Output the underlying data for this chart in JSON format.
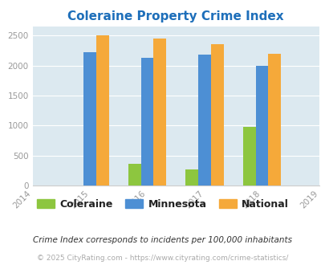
{
  "title": "Coleraine Property Crime Index",
  "years": [
    2015,
    2016,
    2017,
    2018
  ],
  "coleraine": [
    0,
    360,
    265,
    980
  ],
  "minnesota": [
    2220,
    2130,
    2180,
    2000
  ],
  "national": [
    2500,
    2450,
    2350,
    2200
  ],
  "xlim": [
    2014,
    2019
  ],
  "ylim": [
    0,
    2650
  ],
  "yticks": [
    0,
    500,
    1000,
    1500,
    2000,
    2500
  ],
  "bar_width": 0.22,
  "color_coleraine": "#8dc63f",
  "color_minnesota": "#4d8fd4",
  "color_national": "#f5a93a",
  "bg_color": "#dce9f0",
  "title_color": "#1e6fba",
  "grid_color": "#ffffff",
  "footnote1": "Crime Index corresponds to incidents per 100,000 inhabitants",
  "footnote2": "© 2025 CityRating.com - https://www.cityrating.com/crime-statistics/",
  "legend_labels": [
    "Coleraine",
    "Minnesota",
    "National"
  ],
  "xticks": [
    2014,
    2015,
    2016,
    2017,
    2018,
    2019
  ]
}
